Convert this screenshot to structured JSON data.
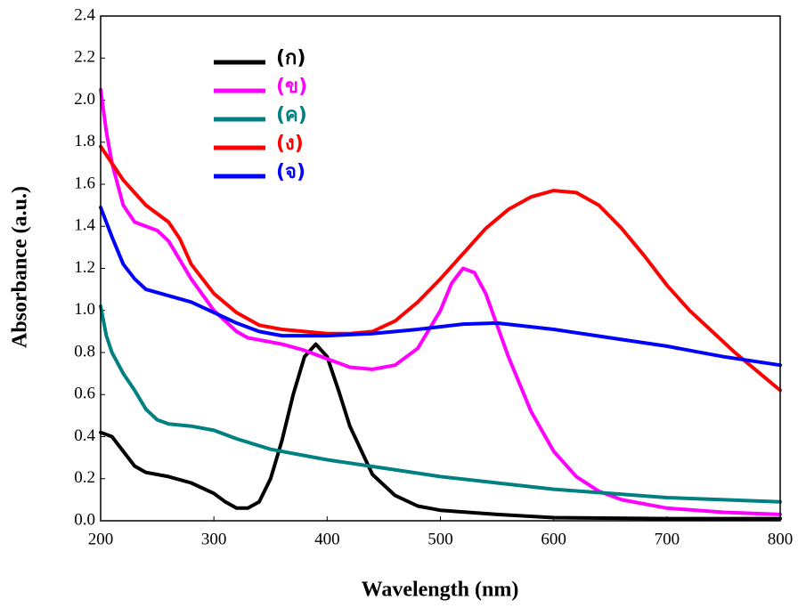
{
  "chart_data": {
    "type": "line",
    "xlabel": "Wavelength (nm)",
    "ylabel": "Absorbance (a.u.)",
    "xlim": [
      200,
      800
    ],
    "xticks": [
      200,
      300,
      400,
      500,
      600,
      700,
      800
    ],
    "ylim": [
      0,
      2.4
    ],
    "yticks": [
      {
        "value": 0,
        "label": "0.0"
      },
      0.2,
      0.4,
      0.6,
      0.8,
      {
        "value": 1,
        "label": "1.0"
      },
      1.2,
      1.4,
      1.6,
      1.8,
      {
        "value": 2,
        "label": "2.0"
      },
      2.2,
      2.4
    ],
    "grid": false,
    "legend": "upper left",
    "series": [
      {
        "name": "(ก)",
        "color": "#000000",
        "x": [
          200,
          210,
          220,
          230,
          240,
          260,
          280,
          300,
          310,
          320,
          330,
          340,
          350,
          360,
          370,
          380,
          390,
          400,
          410,
          420,
          440,
          460,
          480,
          500,
          550,
          600,
          700,
          800
        ],
        "values": [
          0.42,
          0.4,
          0.33,
          0.26,
          0.23,
          0.21,
          0.18,
          0.13,
          0.09,
          0.06,
          0.06,
          0.09,
          0.2,
          0.38,
          0.6,
          0.78,
          0.84,
          0.78,
          0.62,
          0.45,
          0.22,
          0.12,
          0.07,
          0.05,
          0.03,
          0.015,
          0.01,
          0.01
        ]
      },
      {
        "name": "(ข)",
        "color": "#ff00ff",
        "x": [
          200,
          205,
          210,
          220,
          230,
          250,
          260,
          280,
          300,
          320,
          330,
          340,
          360,
          380,
          400,
          420,
          440,
          460,
          480,
          500,
          510,
          520,
          530,
          540,
          560,
          580,
          600,
          620,
          640,
          660,
          700,
          750,
          800
        ],
        "values": [
          2.05,
          1.85,
          1.7,
          1.5,
          1.42,
          1.38,
          1.33,
          1.15,
          1.0,
          0.9,
          0.87,
          0.86,
          0.84,
          0.81,
          0.77,
          0.73,
          0.72,
          0.74,
          0.82,
          1.0,
          1.13,
          1.2,
          1.18,
          1.08,
          0.78,
          0.52,
          0.33,
          0.21,
          0.14,
          0.1,
          0.06,
          0.04,
          0.03
        ]
      },
      {
        "name": "(ค)",
        "color": "#008080",
        "x": [
          200,
          205,
          210,
          220,
          230,
          240,
          250,
          260,
          280,
          300,
          320,
          350,
          400,
          450,
          500,
          550,
          600,
          650,
          700,
          750,
          800
        ],
        "values": [
          1.02,
          0.88,
          0.8,
          0.7,
          0.62,
          0.53,
          0.48,
          0.46,
          0.45,
          0.43,
          0.39,
          0.34,
          0.29,
          0.25,
          0.21,
          0.18,
          0.15,
          0.13,
          0.11,
          0.1,
          0.09
        ]
      },
      {
        "name": "(ง)",
        "color": "#ff0000",
        "x": [
          200,
          220,
          240,
          260,
          270,
          280,
          300,
          320,
          340,
          360,
          380,
          400,
          420,
          440,
          460,
          480,
          500,
          520,
          540,
          560,
          580,
          600,
          620,
          640,
          660,
          680,
          700,
          720,
          740,
          760,
          780,
          800
        ],
        "values": [
          1.78,
          1.62,
          1.5,
          1.42,
          1.34,
          1.22,
          1.08,
          0.99,
          0.93,
          0.91,
          0.9,
          0.89,
          0.89,
          0.9,
          0.95,
          1.04,
          1.15,
          1.27,
          1.39,
          1.48,
          1.54,
          1.57,
          1.56,
          1.5,
          1.39,
          1.26,
          1.12,
          1.0,
          0.9,
          0.8,
          0.71,
          0.62
        ]
      },
      {
        "name": "(จ)",
        "color": "#0000ff",
        "x": [
          200,
          210,
          220,
          230,
          240,
          260,
          280,
          300,
          320,
          340,
          360,
          400,
          440,
          480,
          520,
          550,
          600,
          650,
          700,
          750,
          800
        ],
        "values": [
          1.49,
          1.35,
          1.22,
          1.15,
          1.1,
          1.07,
          1.04,
          0.99,
          0.94,
          0.9,
          0.88,
          0.88,
          0.89,
          0.91,
          0.935,
          0.94,
          0.91,
          0.87,
          0.83,
          0.78,
          0.74
        ]
      }
    ]
  }
}
